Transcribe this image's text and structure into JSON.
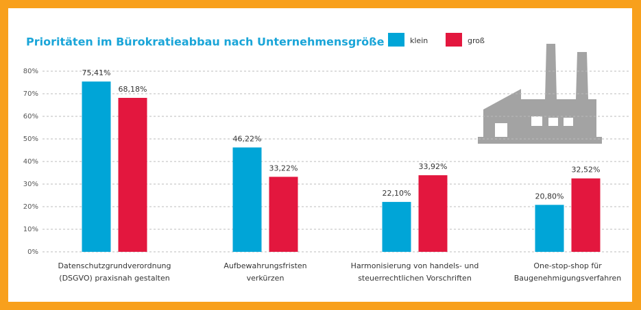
{
  "chart_data": {
    "type": "bar",
    "title": "Prioritäten im Bürokratieabbau nach Unternehmensgröße",
    "categories": [
      "Datenschutzgrundverordnung\n(DSGVO) praxisnah gestalten",
      "Aufbewahrungsfristen\nverkürzen",
      "Harmonisierung von handels- und\nsteuerrechtlichen Vorschriften",
      "One-stop-shop für\nBaugenehmigungsverfahren"
    ],
    "series": [
      {
        "name": "klein",
        "color": "#00a5d7",
        "values": [
          75.41,
          46.22,
          22.1,
          20.8
        ],
        "value_labels": [
          "75,41%",
          "46,22%",
          "22,10%",
          "20,80%"
        ]
      },
      {
        "name": "groß",
        "color": "#e3173e",
        "values": [
          68.18,
          33.22,
          33.92,
          32.52
        ],
        "value_labels": [
          "68,18%",
          "33,22%",
          "33,92%",
          "32,52%"
        ]
      }
    ],
    "ylim": [
      0,
      80
    ],
    "yticks": [
      {
        "value": 0,
        "label": "0%"
      },
      {
        "value": 10,
        "label": "10%"
      },
      {
        "value": 20,
        "label": "20%"
      },
      {
        "value": 30,
        "label": "30%"
      },
      {
        "value": 40,
        "label": "40%"
      },
      {
        "value": 50,
        "label": "50%"
      },
      {
        "value": 60,
        "label": "60%"
      },
      {
        "value": 70,
        "label": "70%"
      },
      {
        "value": 80,
        "label": "80%"
      }
    ],
    "grid": true
  }
}
